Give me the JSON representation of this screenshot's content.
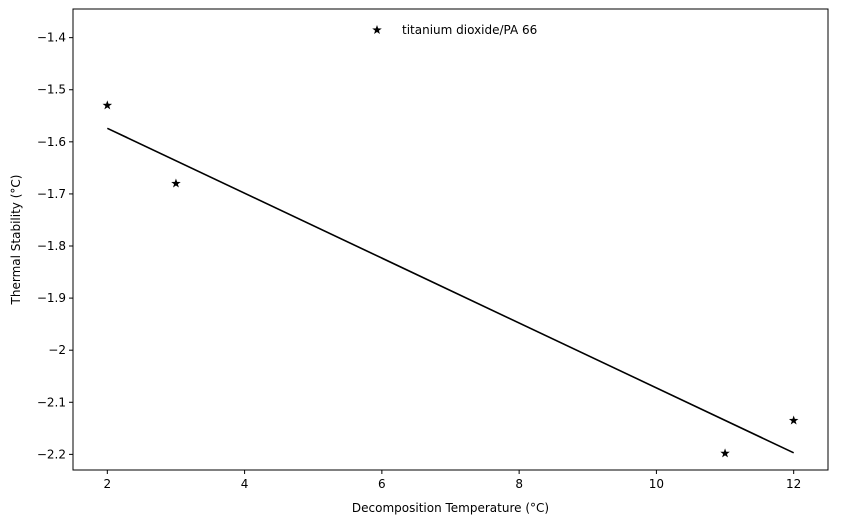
{
  "chart_data": {
    "type": "scatter",
    "xlabel": "Decomposition Temperature (°C)",
    "ylabel": "Thermal Stability (°C)",
    "xlim": [
      1.5,
      12.5
    ],
    "ylim": [
      -2.23,
      -1.345
    ],
    "xticks": [
      2,
      4,
      6,
      8,
      10,
      12
    ],
    "yticks": [
      -2.2,
      -2.1,
      -2.0,
      -1.9,
      -1.8,
      -1.7,
      -1.6,
      -1.5,
      -1.4
    ],
    "grid": false,
    "legend_position": "top-center",
    "series": [
      {
        "name": "titanium dioxide/PA 66",
        "marker": "star",
        "color": "#000000",
        "points": [
          {
            "x": 2,
            "y": -1.53
          },
          {
            "x": 3,
            "y": -1.68
          },
          {
            "x": 11,
            "y": -2.198
          },
          {
            "x": 12,
            "y": -2.135
          }
        ]
      }
    ],
    "fit_line": {
      "color": "#000000",
      "x": [
        2,
        12
      ],
      "y": [
        -1.574,
        -2.197
      ]
    }
  }
}
